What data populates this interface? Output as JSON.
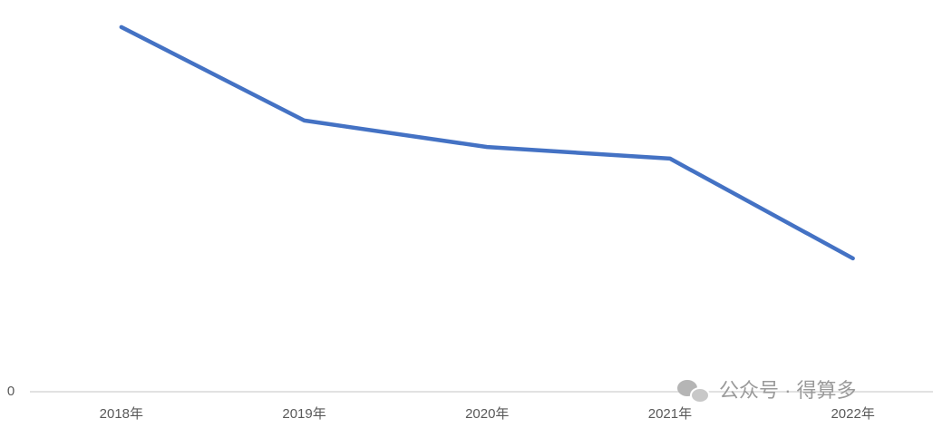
{
  "chart_data": {
    "type": "line",
    "categories": [
      "2018年",
      "2019年",
      "2020年",
      "2021年",
      "2022年"
    ],
    "series": [
      {
        "color": "#4472c4",
        "values": [
          97.6,
          72.6,
          65.5,
          62.4,
          35.7
        ]
      }
    ],
    "ylim": [
      0,
      100
    ],
    "yticks": [
      0
    ],
    "watermark": "公众号 · 得算多"
  }
}
